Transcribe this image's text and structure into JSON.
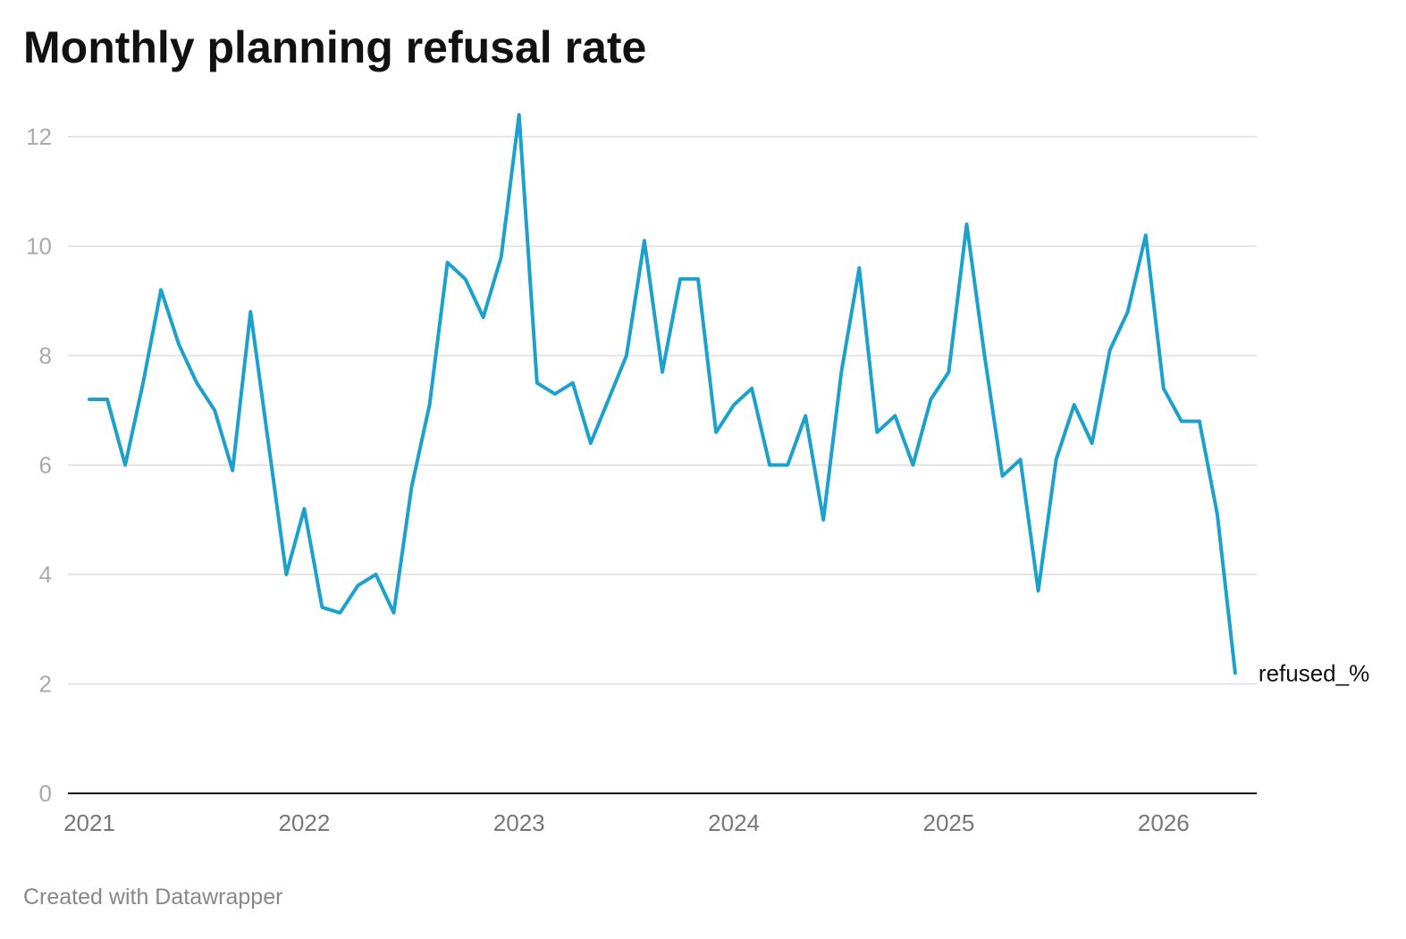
{
  "chart_data": {
    "type": "line",
    "title": "Monthly planning refusal rate",
    "footer": "Created with Datawrapper",
    "xlabel": "",
    "ylabel": "",
    "ylim": [
      0,
      12
    ],
    "y_ticks": [
      0,
      2,
      4,
      6,
      8,
      10,
      12
    ],
    "x_ticks": [
      "2021",
      "2022",
      "2023",
      "2024",
      "2025",
      "2026"
    ],
    "grid": true,
    "legend": "end-of-line label",
    "color": "#1ba1cc",
    "x": [
      "2021-01",
      "2021-02",
      "2021-03",
      "2021-04",
      "2021-05",
      "2021-06",
      "2021-07",
      "2021-08",
      "2021-09",
      "2021-10",
      "2021-11",
      "2021-12",
      "2022-01",
      "2022-02",
      "2022-03",
      "2022-04",
      "2022-05",
      "2022-06",
      "2022-07",
      "2022-08",
      "2022-09",
      "2022-10",
      "2022-11",
      "2022-12",
      "2023-01",
      "2023-02",
      "2023-03",
      "2023-04",
      "2023-05",
      "2023-06",
      "2023-07",
      "2023-08",
      "2023-09",
      "2023-10",
      "2023-11",
      "2023-12",
      "2024-01",
      "2024-02",
      "2024-03",
      "2024-04",
      "2024-05",
      "2024-06",
      "2024-07",
      "2024-08",
      "2024-09",
      "2024-10",
      "2024-11",
      "2024-12",
      "2025-01",
      "2025-02",
      "2025-03",
      "2025-04",
      "2025-05",
      "2025-06",
      "2025-07",
      "2025-08",
      "2025-09",
      "2025-10",
      "2025-11",
      "2025-12",
      "2026-01",
      "2026-02",
      "2026-03",
      "2026-04",
      "2026-05"
    ],
    "series": [
      {
        "name": "refused_%",
        "values": [
          7.2,
          7.2,
          6.0,
          7.5,
          9.2,
          8.2,
          7.5,
          7.0,
          5.9,
          8.8,
          6.4,
          4.0,
          5.2,
          3.4,
          3.3,
          3.8,
          4.0,
          3.3,
          5.6,
          7.1,
          9.7,
          9.4,
          8.7,
          9.8,
          12.4,
          7.5,
          7.3,
          7.5,
          6.4,
          7.2,
          8.0,
          10.1,
          7.7,
          9.4,
          9.4,
          6.6,
          7.1,
          7.4,
          6.0,
          6.0,
          6.9,
          5.0,
          7.7,
          9.6,
          6.6,
          6.9,
          6.0,
          7.2,
          7.7,
          10.4,
          8.0,
          5.8,
          6.1,
          3.7,
          6.1,
          7.1,
          6.4,
          8.1,
          8.8,
          10.2,
          7.4,
          6.8,
          6.8,
          5.1,
          2.2
        ]
      }
    ]
  }
}
